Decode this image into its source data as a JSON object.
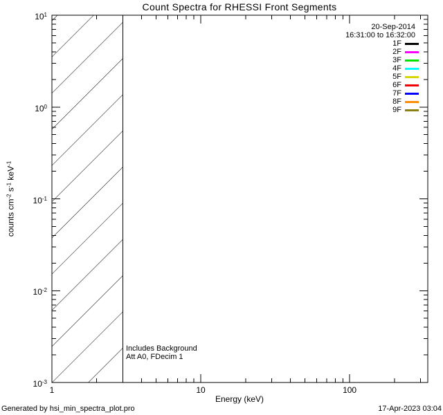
{
  "chart_data": {
    "type": "line",
    "title": "Count Spectra for RHESSI Front Segments",
    "xlabel": "Energy (keV)",
    "ylabel_segments": [
      {
        "t": "counts cm",
        "sup": false
      },
      {
        "t": "-2",
        "sup": true
      },
      {
        "t": " s",
        "sup": false
      },
      {
        "t": "-1",
        "sup": true
      },
      {
        "t": " keV",
        "sup": false
      },
      {
        "t": "-1",
        "sup": true
      }
    ],
    "xscale": "log",
    "yscale": "log",
    "xlim": [
      1,
      335
    ],
    "ylim": [
      0.001,
      10
    ],
    "grid": false,
    "x_major_ticks": [
      1,
      10,
      100
    ],
    "x_tick_labels": [
      "1",
      "10",
      "100"
    ],
    "y_major_ticks": [
      10,
      1,
      0.1,
      0.01,
      0.001
    ],
    "y_tick_labels": [
      {
        "base": "10",
        "exp": "1"
      },
      {
        "base": "10",
        "exp": "0"
      },
      {
        "base": "10",
        "exp": "-1"
      },
      {
        "base": "10",
        "exp": "-2"
      },
      {
        "base": "10",
        "exp": "-3"
      }
    ],
    "series": [],
    "no_data_region": {
      "x_from": 1,
      "x_to": 3,
      "style": "diagonal-hatch"
    },
    "legend": {
      "position": "top-right",
      "date": "20-Sep-2014",
      "time_interval": "16:31:00 to 16:32:00",
      "entries": [
        {
          "label": "1F",
          "color": "#000000"
        },
        {
          "label": "2F",
          "color": "#ff00ff"
        },
        {
          "label": "3F",
          "color": "#00e100"
        },
        {
          "label": "4F",
          "color": "#00ffff"
        },
        {
          "label": "5F",
          "color": "#d8d800"
        },
        {
          "label": "6F",
          "color": "#f40000"
        },
        {
          "label": "7F",
          "color": "#0000ff"
        },
        {
          "label": "8F",
          "color": "#ff8c00"
        },
        {
          "label": "9F",
          "color": "#8a7f12"
        }
      ]
    },
    "annotations": {
      "line1": "Includes Background",
      "line2": "Att A0, FDecim 1"
    }
  },
  "footer": {
    "left": "Generated by hsi_min_spectra_plot.pro",
    "right": "17-Apr-2023 03:04"
  }
}
